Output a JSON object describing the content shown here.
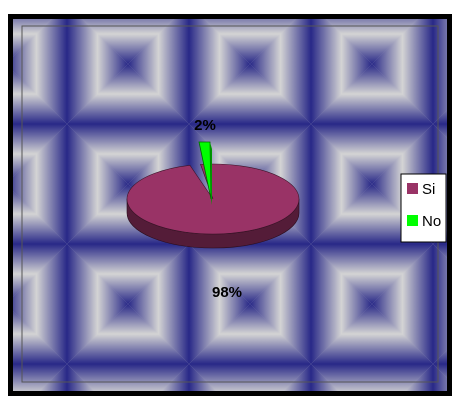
{
  "chart_data": {
    "type": "pie",
    "style": "3d",
    "series": [
      {
        "name": "Si",
        "value": 98,
        "label": "98%",
        "color": "#993366"
      },
      {
        "name": "No",
        "value": 2,
        "label": "2%",
        "color": "#00ff00"
      }
    ],
    "legend": {
      "position": "right",
      "entries": [
        "Si",
        "No"
      ]
    },
    "background": "diamond-gradient-navy-gray",
    "colors": {
      "background_dark": "#0a0a7a",
      "background_light": "#d0d0d0"
    }
  }
}
